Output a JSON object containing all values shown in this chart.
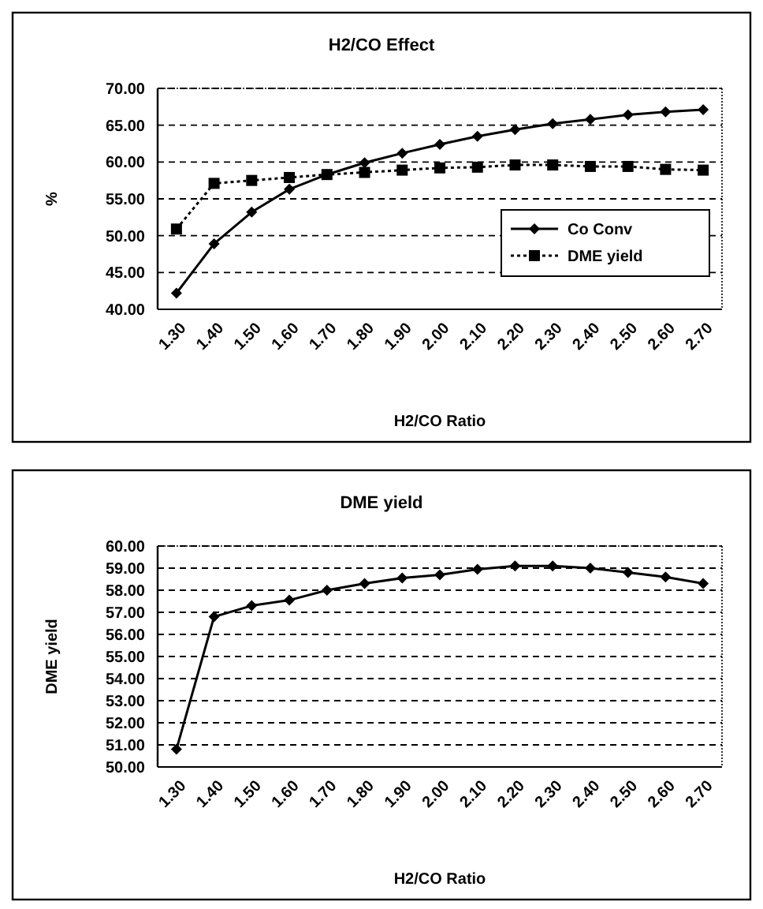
{
  "chart_data": [
    {
      "type": "line",
      "title": "H2/CO Effect",
      "xlabel": "H2/CO Ratio",
      "ylabel": "%",
      "categories": [
        "1.30",
        "1.40",
        "1.50",
        "1.60",
        "1.70",
        "1.80",
        "1.90",
        "2.00",
        "2.10",
        "2.20",
        "2.30",
        "2.40",
        "2.50",
        "2.60",
        "2.70"
      ],
      "series": [
        {
          "name": "Co Conv",
          "color": "#000000",
          "marker": "diamond",
          "line_style": "solid",
          "values": [
            42.2,
            48.9,
            53.2,
            56.3,
            58.3,
            59.9,
            61.2,
            62.4,
            63.5,
            64.4,
            65.2,
            65.8,
            66.4,
            66.8,
            67.1
          ]
        },
        {
          "name": "DME yield",
          "color": "#000000",
          "marker": "square",
          "line_style": "dotted",
          "values": [
            50.9,
            57.1,
            57.5,
            57.9,
            58.3,
            58.6,
            58.9,
            59.2,
            59.3,
            59.6,
            59.6,
            59.4,
            59.4,
            59.0,
            58.9
          ]
        }
      ],
      "ylim": [
        40,
        70
      ],
      "yticks": [
        {
          "value": 40,
          "label": "40.00"
        },
        {
          "value": 45,
          "label": "45.00"
        },
        {
          "value": 50,
          "label": "50.00"
        },
        {
          "value": 55,
          "label": "55.00"
        },
        {
          "value": 60,
          "label": "60.00"
        },
        {
          "value": 65,
          "label": "65.00"
        },
        {
          "value": 70,
          "label": "70.00"
        }
      ],
      "grid": "y",
      "legend": "right"
    },
    {
      "type": "line",
      "title": "DME yield",
      "xlabel": "H2/CO Ratio",
      "ylabel": "DME yield",
      "categories": [
        "1.30",
        "1.40",
        "1.50",
        "1.60",
        "1.70",
        "1.80",
        "1.90",
        "2.00",
        "2.10",
        "2.20",
        "2.30",
        "2.40",
        "2.50",
        "2.60",
        "2.70"
      ],
      "series": [
        {
          "color": "#000000",
          "marker": "diamond",
          "line_style": "solid",
          "values": [
            50.8,
            56.8,
            57.3,
            57.55,
            58.0,
            58.3,
            58.55,
            58.7,
            58.95,
            59.1,
            59.1,
            59.0,
            58.8,
            58.6,
            58.3
          ]
        }
      ],
      "ylim": [
        50,
        60
      ],
      "yticks": [
        {
          "value": 50,
          "label": "50.00"
        },
        {
          "value": 51,
          "label": "51.00"
        },
        {
          "value": 52,
          "label": "52.00"
        },
        {
          "value": 53,
          "label": "53.00"
        },
        {
          "value": 54,
          "label": "54.00"
        },
        {
          "value": 55,
          "label": "55.00"
        },
        {
          "value": 56,
          "label": "56.00"
        },
        {
          "value": 57,
          "label": "57.00"
        },
        {
          "value": 58,
          "label": "58.00"
        },
        {
          "value": 59,
          "label": "59.00"
        },
        {
          "value": 60,
          "label": "60.00"
        }
      ],
      "grid": "y",
      "legend": false
    }
  ]
}
